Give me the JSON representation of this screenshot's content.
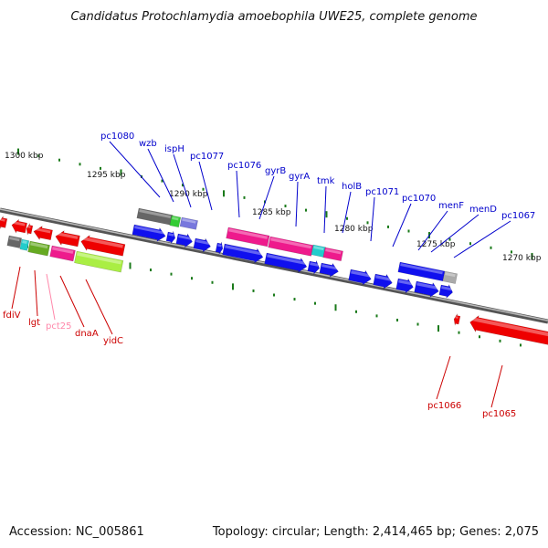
{
  "title": "Candidatus Protochlamydia amoebophila UWE25, complete genome",
  "footer": {
    "accession": "Accession: NC_005861",
    "stats": "Topology: circular; Length: 2,414,465 bp; Genes: 2,075"
  },
  "colors": {
    "top_label": "#0000cc",
    "bottom_label": "#cc0000",
    "pink_label": "#ff88aa",
    "tick": "#1a7a1a",
    "backbone": "#777777"
  },
  "scale_labels": [
    "1300 kbp",
    "1295 kbp",
    "1290 kbp",
    "1285 kbp",
    "1280 kbp",
    "1275 kbp",
    "1270 kbp"
  ],
  "top_labels": [
    "pc1080",
    "wzb",
    "ispH",
    "pc1077",
    "pc1076",
    "gyrB",
    "gyrA",
    "tmk",
    "holB",
    "pc1071",
    "pc1070",
    "menF",
    "menD",
    "pc1067"
  ],
  "bottom_labels": [
    "fdiV",
    "lgt",
    "pct25",
    "dnaA",
    "yidC",
    "pc1066",
    "pc1065"
  ]
}
